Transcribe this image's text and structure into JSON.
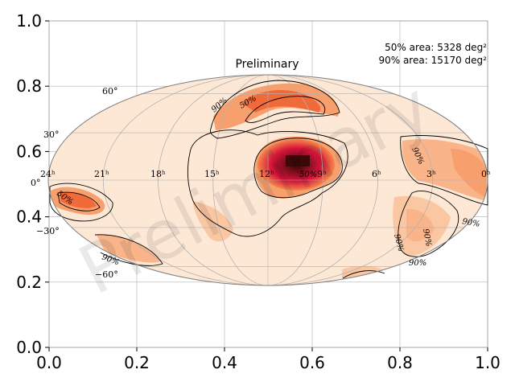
{
  "chart_data": {
    "type": "heatmap",
    "projection": "mollweide",
    "title": "Preliminary",
    "watermark": "Preliminary",
    "xlim": [
      0.0,
      1.0
    ],
    "ylim": [
      0.0,
      1.0
    ],
    "x_ticks": [
      "0.0",
      "0.2",
      "0.4",
      "0.6",
      "0.8",
      "1.0"
    ],
    "y_ticks": [
      "0.0",
      "0.2",
      "0.4",
      "0.6",
      "0.8",
      "1.0"
    ],
    "grid": true,
    "area_lines": [
      "50% area: 5328 deg²",
      "90% area: 15170 deg²"
    ],
    "ra_labels": [
      "24ʰ",
      "21ʰ",
      "18ʰ",
      "15ʰ",
      "12ʰ",
      "9ʰ",
      "6ʰ",
      "3ʰ",
      "0ʰ"
    ],
    "dec_labels": [
      "60°",
      "30°",
      "0°",
      "−30°",
      "−60°"
    ],
    "contour_levels": [
      "50%",
      "90%"
    ],
    "colormap": "cylon",
    "colors": {
      "background": "#fde8d6",
      "low": "#fcd3b4",
      "mid": "#f4884a",
      "high": "#d7143c",
      "peak": "#4a0a0a",
      "grid": "#b0b0b0",
      "outline": "#808080"
    }
  }
}
